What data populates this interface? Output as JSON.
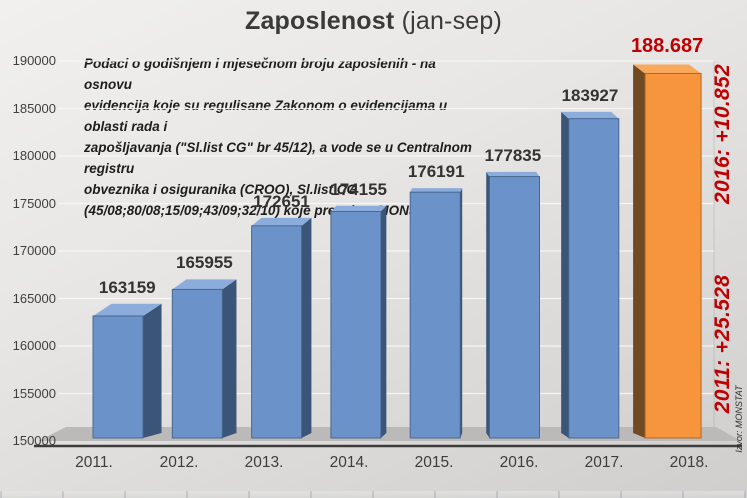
{
  "title": {
    "main": "Zaposlenost",
    "suffix": " (jan-sep)"
  },
  "note": "Podaci o godišnjem i mjesečnom broju zaposlenih - na osnovu\nevidencija  koje su  regulisane Zakonom o evidencijama u oblasti rada i\nzapošljavanja (\"Sl.list CG\" br 45/12), a vode se u Centralnom registru\nobveznika i osiguranika (CROO), Sl.list CG\n(45/08;80/08;15/09;43/09;32/10) koje preuzima MONSTAT",
  "chart_data": {
    "type": "bar",
    "title": "Zaposlenost (jan-sep)",
    "xlabel": "",
    "ylabel": "",
    "categories": [
      "2011.",
      "2012.",
      "2013.",
      "2014.",
      "2015.",
      "2016.",
      "2017.",
      "2018."
    ],
    "values": [
      163159,
      165955,
      172651,
      174155,
      176191,
      177835,
      183927,
      188687
    ],
    "value_labels": [
      "163159",
      "165955",
      "172651",
      "174155",
      "176191",
      "177835",
      "183927",
      "188.687"
    ],
    "highlight_index": 7,
    "ylim": [
      150000,
      190000
    ],
    "ytick_step": 5000,
    "yticks": [
      "190000",
      "185000",
      "180000",
      "175000",
      "170000",
      "165000",
      "160000",
      "155000",
      "150000"
    ],
    "grid": true,
    "legend_position": "none",
    "style_3d": true,
    "colors": {
      "bar_front": "#6b92c9",
      "bar_top": "#8cacdc",
      "bar_side": "#3a5578",
      "bar_stroke": "#49688f",
      "highlight_front": "#f6953e",
      "highlight_top": "#f8a95c",
      "highlight_side": "#704a23",
      "highlight_stroke": "#b06a25",
      "accent_red": "#c00000",
      "gridline": "#f8f8f8",
      "floor": "#bbbab8",
      "axis_line": "#3c3c3c"
    },
    "annotations": [
      {
        "text": "2016: +10.852"
      },
      {
        "text": "2011: +25.528"
      }
    ],
    "source": "Izvor: MONSTAT"
  }
}
